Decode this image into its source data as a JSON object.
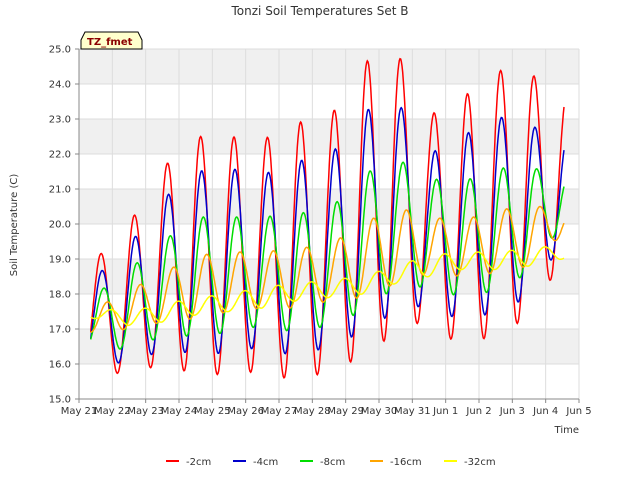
{
  "chart_data": {
    "type": "line",
    "title": "Tonzi Soil Temperatures Set B",
    "xlabel": "Time",
    "ylabel": "Soil Temperature (C)",
    "badge": "TZ_fmet",
    "xlim": [
      0,
      15
    ],
    "ylim": [
      15.0,
      25.0
    ],
    "yticks": [
      "15.0",
      "16.0",
      "17.0",
      "18.0",
      "19.0",
      "20.0",
      "21.0",
      "22.0",
      "23.0",
      "24.0",
      "25.0"
    ],
    "xticks": [
      "May 21",
      "May 22",
      "May 23",
      "May 24",
      "May 25",
      "May 26",
      "May 27",
      "May 28",
      "May 29",
      "May 30",
      "May 31",
      "Jun 1",
      "Jun 2",
      "Jun 3",
      "Jun 4",
      "Jun 5"
    ],
    "grid": true,
    "legend_position": "bottom",
    "x_units": "days since May 21",
    "colors": {
      "background_band": "#f0f0f0",
      "plot_bg": "#ffffff",
      "grid": "#dddddd"
    },
    "series": [
      {
        "name": "-2cm",
        "color": "#ff0000",
        "min": [
          15.8,
          15.7,
          16.0,
          15.7,
          15.7,
          15.8,
          15.5,
          15.8,
          16.2,
          16.9,
          17.3,
          16.4,
          16.9,
          17.3,
          19.0
        ],
        "max": [
          19.0,
          20.0,
          21.6,
          22.5,
          22.5,
          22.4,
          22.9,
          23.0,
          24.6,
          25.0,
          23.1,
          23.6,
          24.4,
          24.3,
          23.8
        ]
      },
      {
        "name": "-4cm",
        "color": "#0000cc",
        "min": [
          16.1,
          16.0,
          16.4,
          16.3,
          16.3,
          16.5,
          16.2,
          16.5,
          16.9,
          17.5,
          17.7,
          17.2,
          17.5,
          17.9,
          19.5
        ],
        "max": [
          18.5,
          19.4,
          20.7,
          21.5,
          21.6,
          21.4,
          21.8,
          21.9,
          23.2,
          23.6,
          22.0,
          22.5,
          23.1,
          22.8,
          22.6
        ]
      },
      {
        "name": "-8cm",
        "color": "#00dd00",
        "min": [
          16.5,
          16.4,
          16.8,
          16.8,
          16.9,
          17.1,
          16.9,
          17.1,
          17.5,
          18.2,
          18.2,
          17.9,
          18.1,
          18.6,
          20.0
        ],
        "max": [
          18.0,
          18.7,
          19.5,
          20.2,
          20.2,
          20.2,
          20.3,
          20.4,
          21.4,
          21.9,
          21.3,
          21.2,
          21.6,
          21.6,
          21.5
        ]
      },
      {
        "name": "-16cm",
        "color": "#ffa500",
        "min": [
          16.9,
          17.0,
          17.2,
          17.3,
          17.5,
          17.6,
          17.6,
          17.8,
          17.9,
          18.3,
          18.6,
          18.5,
          18.6,
          18.8,
          19.7
        ],
        "max": [
          17.6,
          18.1,
          18.6,
          19.1,
          19.2,
          19.2,
          19.3,
          19.4,
          20.0,
          20.5,
          20.2,
          20.1,
          20.4,
          20.5,
          20.5
        ]
      },
      {
        "name": "-32cm",
        "color": "#ffff00",
        "min": [
          17.3,
          17.1,
          17.2,
          17.4,
          17.5,
          17.6,
          17.8,
          17.9,
          18.0,
          18.3,
          18.5,
          18.7,
          18.7,
          18.8,
          19.0
        ],
        "max": [
          17.6,
          17.5,
          17.7,
          17.9,
          18.0,
          18.2,
          18.3,
          18.4,
          18.5,
          18.8,
          19.1,
          19.2,
          19.2,
          19.3,
          19.4
        ]
      }
    ]
  }
}
